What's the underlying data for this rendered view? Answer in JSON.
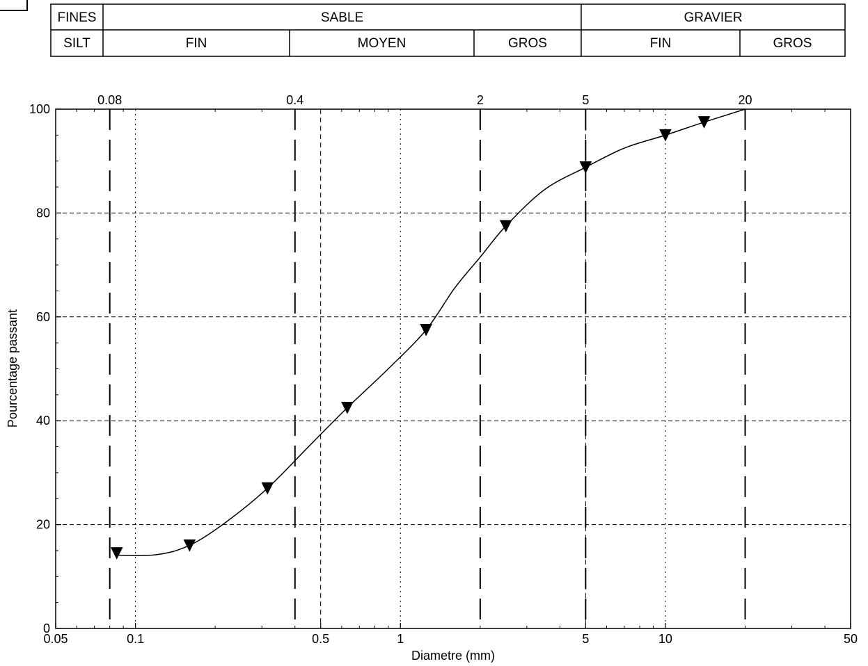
{
  "classification_table": {
    "fines_label": "FINES",
    "silt_label": "SILT",
    "sable_label": "SABLE",
    "sable_fin_label": "FIN",
    "sable_moyen_label": "MOYEN",
    "sable_gros_label": "GROS",
    "gravier_label": "GRAVIER",
    "gravier_fin_label": "FIN",
    "gravier_gros_label": "GROS"
  },
  "chart_data": {
    "type": "line",
    "title": "",
    "xlabel": "Diametre (mm)",
    "ylabel": "Pourcentage passant",
    "x_scale": "log",
    "xlim": [
      0.05,
      50
    ],
    "ylim": [
      0,
      100
    ],
    "x_ticks": [
      {
        "value": 0.05,
        "label": "0.05"
      },
      {
        "value": 0.1,
        "label": "0.1"
      },
      {
        "value": 0.5,
        "label": "0.5"
      },
      {
        "value": 1,
        "label": "1"
      },
      {
        "value": 5,
        "label": "5"
      },
      {
        "value": 10,
        "label": "10"
      },
      {
        "value": 50,
        "label": "50"
      }
    ],
    "y_ticks": [
      {
        "value": 0,
        "label": "0"
      },
      {
        "value": 20,
        "label": "20"
      },
      {
        "value": 40,
        "label": "40"
      },
      {
        "value": 60,
        "label": "60"
      },
      {
        "value": 80,
        "label": "80"
      },
      {
        "value": 100,
        "label": "100"
      }
    ],
    "top_ticks": [
      {
        "value": 0.08,
        "label": "0.08"
      },
      {
        "value": 0.4,
        "label": "0.4"
      },
      {
        "value": 2,
        "label": "2"
      },
      {
        "value": 5,
        "label": "5"
      },
      {
        "value": 20,
        "label": "20"
      }
    ],
    "classification_boundaries": [
      0.08,
      0.4,
      2,
      5,
      20
    ],
    "grid": true,
    "marker": "triangle-down",
    "series": [
      {
        "x": [
          0.085,
          0.16,
          0.315,
          0.63,
          1.25,
          2.5,
          5.0,
          10.0,
          14.0
        ],
        "y": [
          14.5,
          16.0,
          27.0,
          42.5,
          57.5,
          77.5,
          88.8,
          95.0,
          97.5
        ]
      }
    ],
    "curve": {
      "x": [
        0.085,
        0.12,
        0.16,
        0.22,
        0.315,
        0.45,
        0.63,
        0.9,
        1.25,
        1.6,
        2.0,
        2.5,
        3.5,
        5.0,
        7.0,
        10.0,
        14.0,
        20.0
      ],
      "y": [
        14.1,
        14.2,
        16.0,
        20.5,
        27.0,
        35.0,
        42.5,
        50.0,
        57.5,
        65.5,
        71.5,
        77.5,
        84.5,
        88.8,
        92.5,
        95.0,
        97.5,
        100.0
      ]
    }
  }
}
